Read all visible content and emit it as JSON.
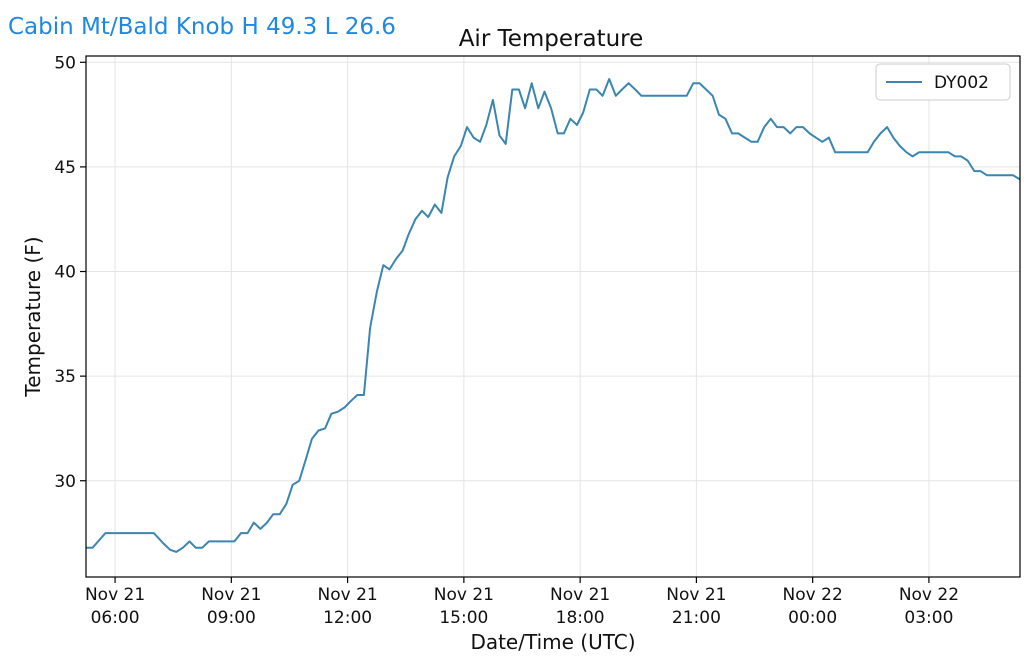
{
  "header": {
    "station_label": "Cabin Mt/Bald Knob H 49.3 L 26.6"
  },
  "chart_data": {
    "type": "line",
    "title": "Air Temperature",
    "xlabel": "Date/Time (UTC)",
    "ylabel": "Temperature (F)",
    "xlim": [
      5.25,
      29.35
    ],
    "ylim": [
      25.4,
      50.3
    ],
    "grid": true,
    "legend_position": "top-right",
    "line_color": "#3b86b0",
    "x_ticks": [
      {
        "x": 6,
        "line1": "Nov 21",
        "line2": "06:00"
      },
      {
        "x": 9,
        "line1": "Nov 21",
        "line2": "09:00"
      },
      {
        "x": 12,
        "line1": "Nov 21",
        "line2": "12:00"
      },
      {
        "x": 15,
        "line1": "Nov 21",
        "line2": "15:00"
      },
      {
        "x": 18,
        "line1": "Nov 21",
        "line2": "18:00"
      },
      {
        "x": 21,
        "line1": "Nov 21",
        "line2": "21:00"
      },
      {
        "x": 24,
        "line1": "Nov 22",
        "line2": "00:00"
      },
      {
        "x": 27,
        "line1": "Nov 22",
        "line2": "03:00"
      }
    ],
    "y_ticks": [
      30,
      35,
      40,
      45,
      50
    ],
    "series": [
      {
        "name": "DY002",
        "points": [
          [
            5.25,
            26.8
          ],
          [
            5.42,
            26.8
          ],
          [
            5.75,
            27.5
          ],
          [
            6.0,
            27.5
          ],
          [
            6.25,
            27.5
          ],
          [
            6.5,
            27.5
          ],
          [
            6.75,
            27.5
          ],
          [
            7.0,
            27.5
          ],
          [
            7.25,
            27.0
          ],
          [
            7.42,
            26.7
          ],
          [
            7.58,
            26.6
          ],
          [
            7.75,
            26.8
          ],
          [
            7.92,
            27.1
          ],
          [
            8.08,
            26.8
          ],
          [
            8.25,
            26.8
          ],
          [
            8.42,
            27.1
          ],
          [
            8.75,
            27.1
          ],
          [
            9.08,
            27.1
          ],
          [
            9.25,
            27.5
          ],
          [
            9.42,
            27.5
          ],
          [
            9.58,
            28.0
          ],
          [
            9.75,
            27.7
          ],
          [
            9.92,
            28.0
          ],
          [
            10.08,
            28.4
          ],
          [
            10.25,
            28.4
          ],
          [
            10.42,
            28.9
          ],
          [
            10.58,
            29.8
          ],
          [
            10.75,
            30.0
          ],
          [
            10.92,
            31.0
          ],
          [
            11.08,
            32.0
          ],
          [
            11.25,
            32.4
          ],
          [
            11.42,
            32.5
          ],
          [
            11.58,
            33.2
          ],
          [
            11.75,
            33.3
          ],
          [
            11.92,
            33.5
          ],
          [
            12.08,
            33.8
          ],
          [
            12.25,
            34.1
          ],
          [
            12.42,
            34.1
          ],
          [
            12.58,
            37.3
          ],
          [
            12.75,
            39.0
          ],
          [
            12.92,
            40.3
          ],
          [
            13.08,
            40.1
          ],
          [
            13.25,
            40.6
          ],
          [
            13.42,
            41.0
          ],
          [
            13.58,
            41.8
          ],
          [
            13.75,
            42.5
          ],
          [
            13.92,
            42.9
          ],
          [
            14.08,
            42.6
          ],
          [
            14.25,
            43.2
          ],
          [
            14.42,
            42.8
          ],
          [
            14.58,
            44.5
          ],
          [
            14.75,
            45.5
          ],
          [
            14.92,
            46.0
          ],
          [
            15.08,
            46.9
          ],
          [
            15.25,
            46.4
          ],
          [
            15.42,
            46.2
          ],
          [
            15.58,
            47.0
          ],
          [
            15.75,
            48.2
          ],
          [
            15.92,
            46.5
          ],
          [
            16.08,
            46.1
          ],
          [
            16.25,
            48.7
          ],
          [
            16.42,
            48.7
          ],
          [
            16.58,
            47.8
          ],
          [
            16.75,
            49.0
          ],
          [
            16.92,
            47.8
          ],
          [
            17.08,
            48.6
          ],
          [
            17.25,
            47.8
          ],
          [
            17.42,
            46.6
          ],
          [
            17.58,
            46.6
          ],
          [
            17.75,
            47.3
          ],
          [
            17.92,
            47.0
          ],
          [
            18.08,
            47.6
          ],
          [
            18.25,
            48.7
          ],
          [
            18.42,
            48.7
          ],
          [
            18.58,
            48.4
          ],
          [
            18.75,
            49.2
          ],
          [
            18.92,
            48.4
          ],
          [
            19.08,
            48.7
          ],
          [
            19.25,
            49.0
          ],
          [
            19.42,
            48.7
          ],
          [
            19.58,
            48.4
          ],
          [
            19.75,
            48.4
          ],
          [
            20.0,
            48.4
          ],
          [
            20.25,
            48.4
          ],
          [
            20.5,
            48.4
          ],
          [
            20.75,
            48.4
          ],
          [
            20.92,
            49.0
          ],
          [
            21.08,
            49.0
          ],
          [
            21.25,
            48.7
          ],
          [
            21.42,
            48.4
          ],
          [
            21.58,
            47.5
          ],
          [
            21.75,
            47.3
          ],
          [
            21.92,
            46.6
          ],
          [
            22.08,
            46.6
          ],
          [
            22.25,
            46.4
          ],
          [
            22.42,
            46.2
          ],
          [
            22.58,
            46.2
          ],
          [
            22.75,
            46.9
          ],
          [
            22.92,
            47.3
          ],
          [
            23.08,
            46.9
          ],
          [
            23.25,
            46.9
          ],
          [
            23.42,
            46.6
          ],
          [
            23.58,
            46.9
          ],
          [
            23.75,
            46.9
          ],
          [
            23.92,
            46.6
          ],
          [
            24.08,
            46.4
          ],
          [
            24.25,
            46.2
          ],
          [
            24.42,
            46.4
          ],
          [
            24.58,
            45.7
          ],
          [
            24.75,
            45.7
          ],
          [
            25.0,
            45.7
          ],
          [
            25.25,
            45.7
          ],
          [
            25.42,
            45.7
          ],
          [
            25.58,
            46.2
          ],
          [
            25.75,
            46.6
          ],
          [
            25.92,
            46.9
          ],
          [
            26.08,
            46.4
          ],
          [
            26.25,
            46.0
          ],
          [
            26.42,
            45.7
          ],
          [
            26.58,
            45.5
          ],
          [
            26.75,
            45.7
          ],
          [
            27.0,
            45.7
          ],
          [
            27.25,
            45.7
          ],
          [
            27.5,
            45.7
          ],
          [
            27.67,
            45.5
          ],
          [
            27.83,
            45.5
          ],
          [
            28.0,
            45.3
          ],
          [
            28.17,
            44.8
          ],
          [
            28.33,
            44.8
          ],
          [
            28.5,
            44.6
          ],
          [
            28.67,
            44.6
          ],
          [
            28.83,
            44.6
          ],
          [
            29.0,
            44.6
          ],
          [
            29.17,
            44.6
          ],
          [
            29.35,
            44.4
          ]
        ]
      }
    ]
  }
}
